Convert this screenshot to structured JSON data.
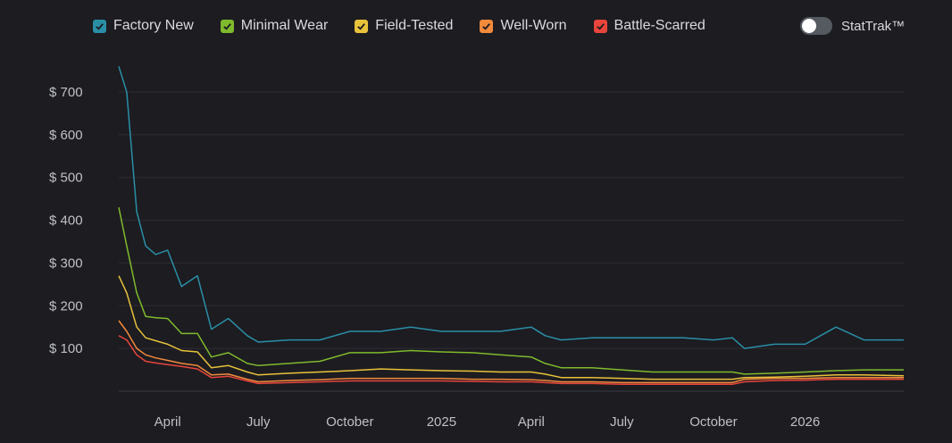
{
  "legend": [
    {
      "label": "Factory New",
      "color": "#2a8fa6",
      "checked": true
    },
    {
      "label": "Minimal Wear",
      "color": "#7fba2c",
      "checked": true
    },
    {
      "label": "Field-Tested",
      "color": "#e8c23a",
      "checked": true
    },
    {
      "label": "Well-Worn",
      "color": "#f28a3c",
      "checked": true
    },
    {
      "label": "Battle-Scarred",
      "color": "#e8453c",
      "checked": true
    }
  ],
  "stattrak": {
    "label": "StatTrak™",
    "enabled": false
  },
  "chart_data": {
    "type": "line",
    "grid": true,
    "ylim": [
      0,
      700
    ],
    "y_ticks": [
      100,
      200,
      300,
      400,
      500,
      600,
      700
    ],
    "y_tick_labels": [
      "$ 100",
      "$ 200",
      "$ 300",
      "$ 400",
      "$ 500",
      "$ 600",
      "$ 700"
    ],
    "x_tick_labels": [
      {
        "label": "April",
        "date": "2024-04-01"
      },
      {
        "label": "July",
        "date": "2024-07-01"
      },
      {
        "label": "October",
        "date": "2024-10-01"
      },
      {
        "label": "2025",
        "date": "2025-01-01"
      },
      {
        "label": "April",
        "date": "2025-04-01"
      },
      {
        "label": "July",
        "date": "2025-07-01"
      },
      {
        "label": "October",
        "date": "2025-10-01"
      },
      {
        "label": "2026",
        "date": "2026-01-01"
      }
    ],
    "xlim": [
      "2024-02-12",
      "2026-04-10"
    ],
    "x": [
      "2024-02-12",
      "2024-02-20",
      "2024-03-01",
      "2024-03-10",
      "2024-03-20",
      "2024-04-01",
      "2024-04-15",
      "2024-05-01",
      "2024-05-15",
      "2024-06-01",
      "2024-06-20",
      "2024-07-01",
      "2024-08-01",
      "2024-09-01",
      "2024-10-01",
      "2024-11-01",
      "2024-12-01",
      "2025-01-01",
      "2025-02-01",
      "2025-03-01",
      "2025-04-01",
      "2025-04-15",
      "2025-05-01",
      "2025-06-01",
      "2025-07-01",
      "2025-08-01",
      "2025-09-01",
      "2025-10-01",
      "2025-10-20",
      "2025-11-01",
      "2025-12-01",
      "2026-01-01",
      "2026-02-01",
      "2026-03-01",
      "2026-04-10"
    ],
    "series": [
      {
        "name": "Factory New",
        "color": "#2a8fa6",
        "values": [
          760,
          700,
          420,
          340,
          320,
          330,
          245,
          270,
          145,
          170,
          130,
          115,
          120,
          120,
          140,
          140,
          150,
          140,
          140,
          140,
          150,
          130,
          120,
          125,
          125,
          125,
          125,
          120,
          125,
          100,
          110,
          110,
          150,
          120,
          120
        ]
      },
      {
        "name": "Minimal Wear",
        "color": "#7fba2c",
        "values": [
          430,
          340,
          230,
          175,
          172,
          170,
          135,
          135,
          80,
          90,
          65,
          60,
          65,
          70,
          90,
          90,
          95,
          92,
          90,
          85,
          80,
          65,
          55,
          55,
          50,
          45,
          45,
          45,
          45,
          40,
          42,
          45,
          48,
          50,
          50
        ]
      },
      {
        "name": "Field-Tested",
        "color": "#e8c23a",
        "values": [
          270,
          230,
          150,
          125,
          118,
          110,
          95,
          92,
          55,
          60,
          45,
          38,
          42,
          45,
          48,
          52,
          50,
          48,
          47,
          45,
          45,
          40,
          32,
          32,
          30,
          28,
          28,
          28,
          28,
          32,
          33,
          35,
          38,
          38,
          36
        ]
      },
      {
        "name": "Well-Worn",
        "color": "#f28a3c",
        "values": [
          165,
          140,
          100,
          85,
          78,
          72,
          65,
          60,
          38,
          40,
          28,
          22,
          25,
          27,
          30,
          30,
          30,
          30,
          28,
          28,
          27,
          25,
          22,
          22,
          20,
          20,
          20,
          20,
          20,
          28,
          30,
          30,
          32,
          32,
          32
        ]
      },
      {
        "name": "Battle-Scarred",
        "color": "#e8453c",
        "values": [
          130,
          120,
          85,
          70,
          66,
          62,
          58,
          52,
          32,
          35,
          24,
          18,
          20,
          22,
          24,
          24,
          24,
          24,
          23,
          22,
          22,
          20,
          18,
          18,
          16,
          16,
          16,
          16,
          16,
          22,
          25,
          26,
          28,
          28,
          28
        ]
      }
    ]
  }
}
